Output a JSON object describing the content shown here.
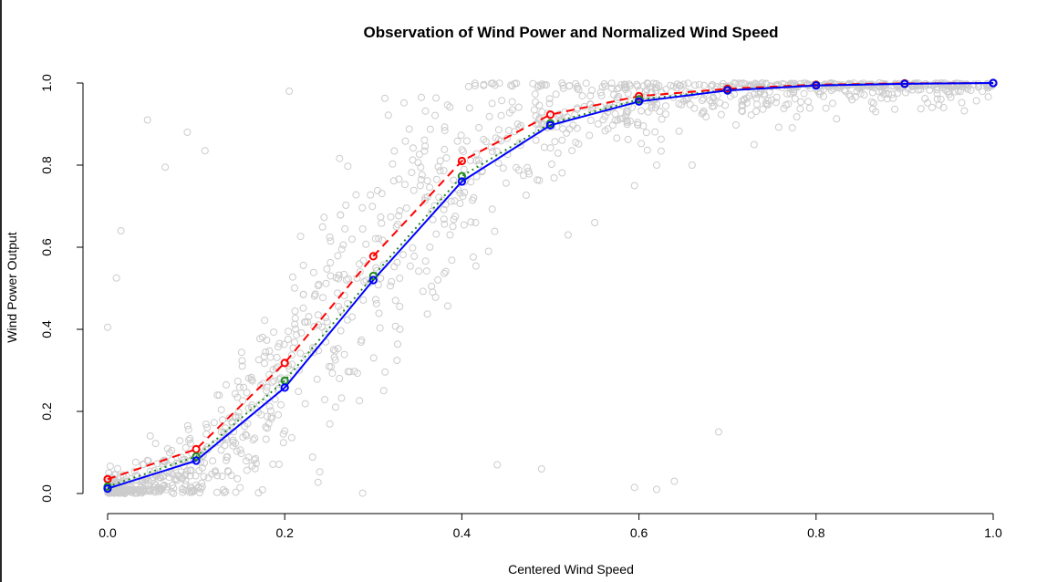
{
  "chart_data": {
    "type": "scatter",
    "title": "Observation of Wind Power and Normalized Wind Speed",
    "xlabel": "Centered Wind Speed",
    "ylabel": "Wind Power Output",
    "xlim": [
      0.0,
      1.0
    ],
    "ylim": [
      0.0,
      1.0
    ],
    "x_ticks": [
      "0.0",
      "0.2",
      "0.4",
      "0.6",
      "0.8",
      "1.0"
    ],
    "y_ticks": [
      "0.0",
      "0.2",
      "0.4",
      "0.6",
      "0.8",
      "1.0"
    ],
    "grid": false,
    "legend": false,
    "observations": {
      "marker": "open-circle",
      "color": "#cccccc",
      "description_of_distribution": [
        [
          0.0,
          0.0
        ],
        [
          0.05,
          0.02
        ],
        [
          0.1,
          0.07
        ],
        [
          0.15,
          0.15
        ],
        [
          0.2,
          0.28
        ],
        [
          0.25,
          0.42
        ],
        [
          0.3,
          0.55
        ],
        [
          0.35,
          0.68
        ],
        [
          0.4,
          0.79
        ],
        [
          0.45,
          0.86
        ],
        [
          0.5,
          0.91
        ],
        [
          0.55,
          0.94
        ],
        [
          0.6,
          0.96
        ],
        [
          0.7,
          0.985
        ],
        [
          0.8,
          0.995
        ],
        [
          0.9,
          1.0
        ],
        [
          1.0,
          1.0
        ]
      ],
      "outliers": [
        [
          0.0,
          0.405
        ],
        [
          0.01,
          0.525
        ],
        [
          0.015,
          0.64
        ],
        [
          0.045,
          0.91
        ],
        [
          0.065,
          0.795
        ],
        [
          0.09,
          0.88
        ],
        [
          0.11,
          0.835
        ],
        [
          0.205,
          0.98
        ],
        [
          0.52,
          0.63
        ],
        [
          0.55,
          0.66
        ],
        [
          0.595,
          0.75
        ],
        [
          0.62,
          0.8
        ],
        [
          0.66,
          0.8
        ],
        [
          0.73,
          0.85
        ],
        [
          0.69,
          0.15
        ],
        [
          0.49,
          0.06
        ],
        [
          0.44,
          0.07
        ],
        [
          0.595,
          0.015
        ],
        [
          0.62,
          0.01
        ],
        [
          0.64,
          0.03
        ]
      ]
    },
    "x": [
      0.0,
      0.1,
      0.2,
      0.3,
      0.4,
      0.5,
      0.6,
      0.7,
      0.8,
      0.9,
      1.0
    ],
    "series": [
      {
        "color": "#ff0000",
        "line_style": "dashed",
        "values": [
          0.035,
          0.108,
          0.318,
          0.578,
          0.81,
          0.923,
          0.968,
          0.986,
          0.996,
          0.999,
          1.0
        ]
      },
      {
        "color": "#228b22",
        "line_style": "dotted",
        "values": [
          0.017,
          0.09,
          0.275,
          0.53,
          0.773,
          0.902,
          0.96,
          0.983,
          0.995,
          0.998,
          1.0
        ]
      },
      {
        "color": "#0000ff",
        "line_style": "solid",
        "values": [
          0.012,
          0.08,
          0.258,
          0.52,
          0.76,
          0.897,
          0.955,
          0.982,
          0.994,
          0.998,
          1.0
        ]
      }
    ]
  }
}
